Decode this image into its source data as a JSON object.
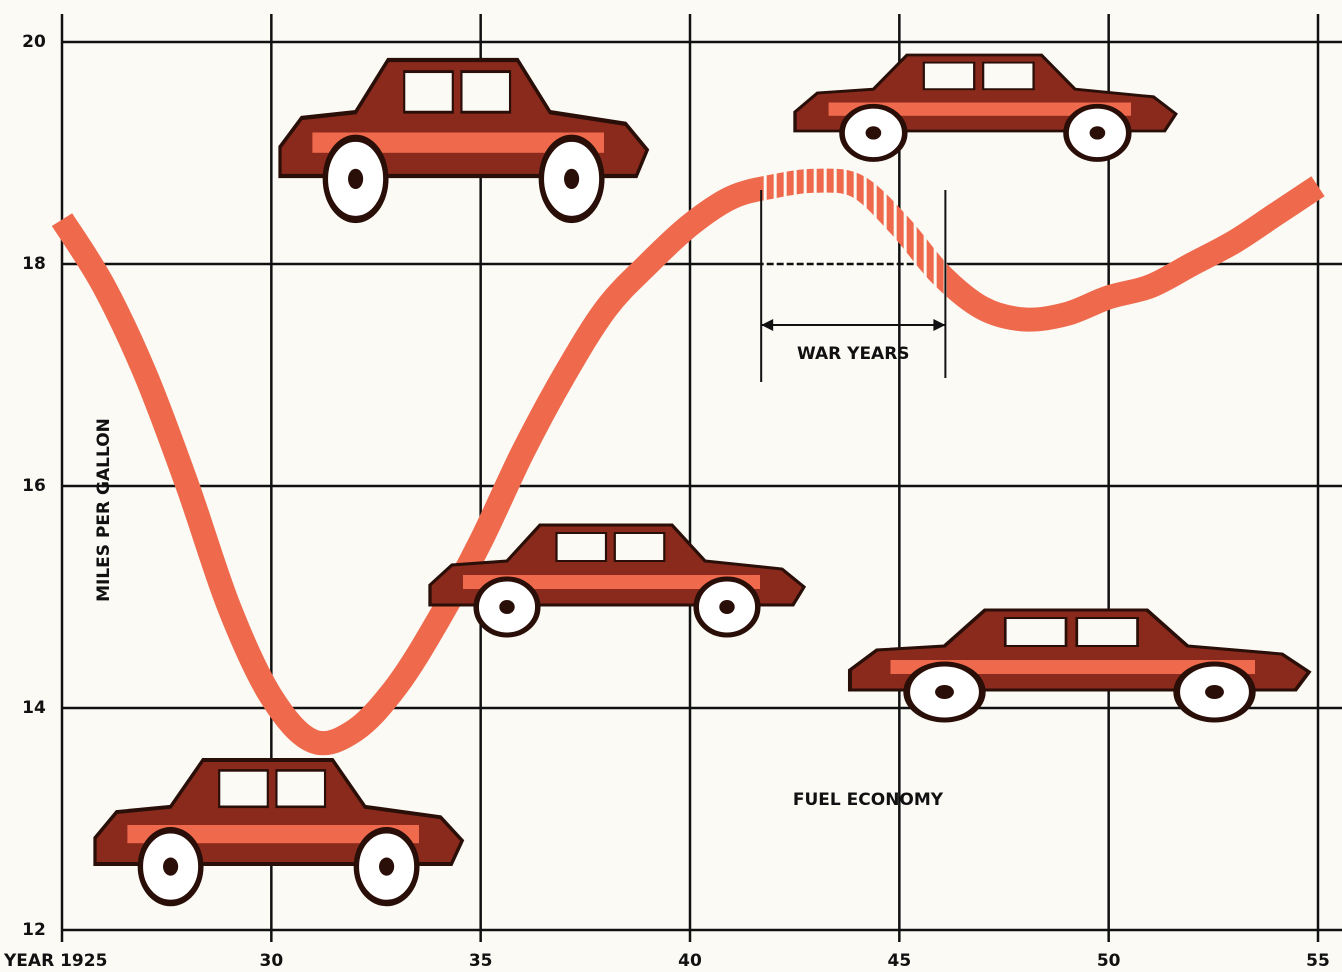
{
  "chart_data": {
    "type": "line",
    "y_label": "MILES PER GALLON",
    "x": [
      1925,
      1926,
      1927,
      1928,
      1929,
      1930,
      1931,
      1932,
      1933,
      1934,
      1935,
      1936,
      1937,
      1938,
      1939,
      1940,
      1941,
      1942,
      1943,
      1944,
      1945,
      1946,
      1947,
      1948,
      1949,
      1950,
      1951,
      1952,
      1953,
      1954,
      1955
    ],
    "series": [
      {
        "name": "FUEL ECONOMY",
        "color": "#ef6a4d",
        "values": [
          18.4,
          17.8,
          17.0,
          16.0,
          14.9,
          14.1,
          13.7,
          13.8,
          14.2,
          14.8,
          15.5,
          16.3,
          17.0,
          17.6,
          18.0,
          18.35,
          18.6,
          18.7,
          18.75,
          18.7,
          18.35,
          17.9,
          17.6,
          17.5,
          17.55,
          17.7,
          17.8,
          18.0,
          18.2,
          18.45,
          18.7
        ]
      }
    ],
    "xlim": [
      1925,
      1955
    ],
    "ylim": [
      12,
      20
    ],
    "xticks": [
      {
        "value": 1925,
        "label": "YEAR 1925"
      },
      {
        "value": 1930,
        "label": "30"
      },
      {
        "value": 1935,
        "label": "35"
      },
      {
        "value": 1940,
        "label": "40"
      },
      {
        "value": 1945,
        "label": "45"
      },
      {
        "value": 1950,
        "label": "50"
      },
      {
        "value": 1955,
        "label": "55"
      }
    ],
    "yticks": [
      12,
      14,
      16,
      18,
      20
    ],
    "grid": true,
    "annotations": [
      {
        "text": "WAR YEARS",
        "x": [
          1941.7,
          1946.1
        ]
      }
    ]
  }
}
